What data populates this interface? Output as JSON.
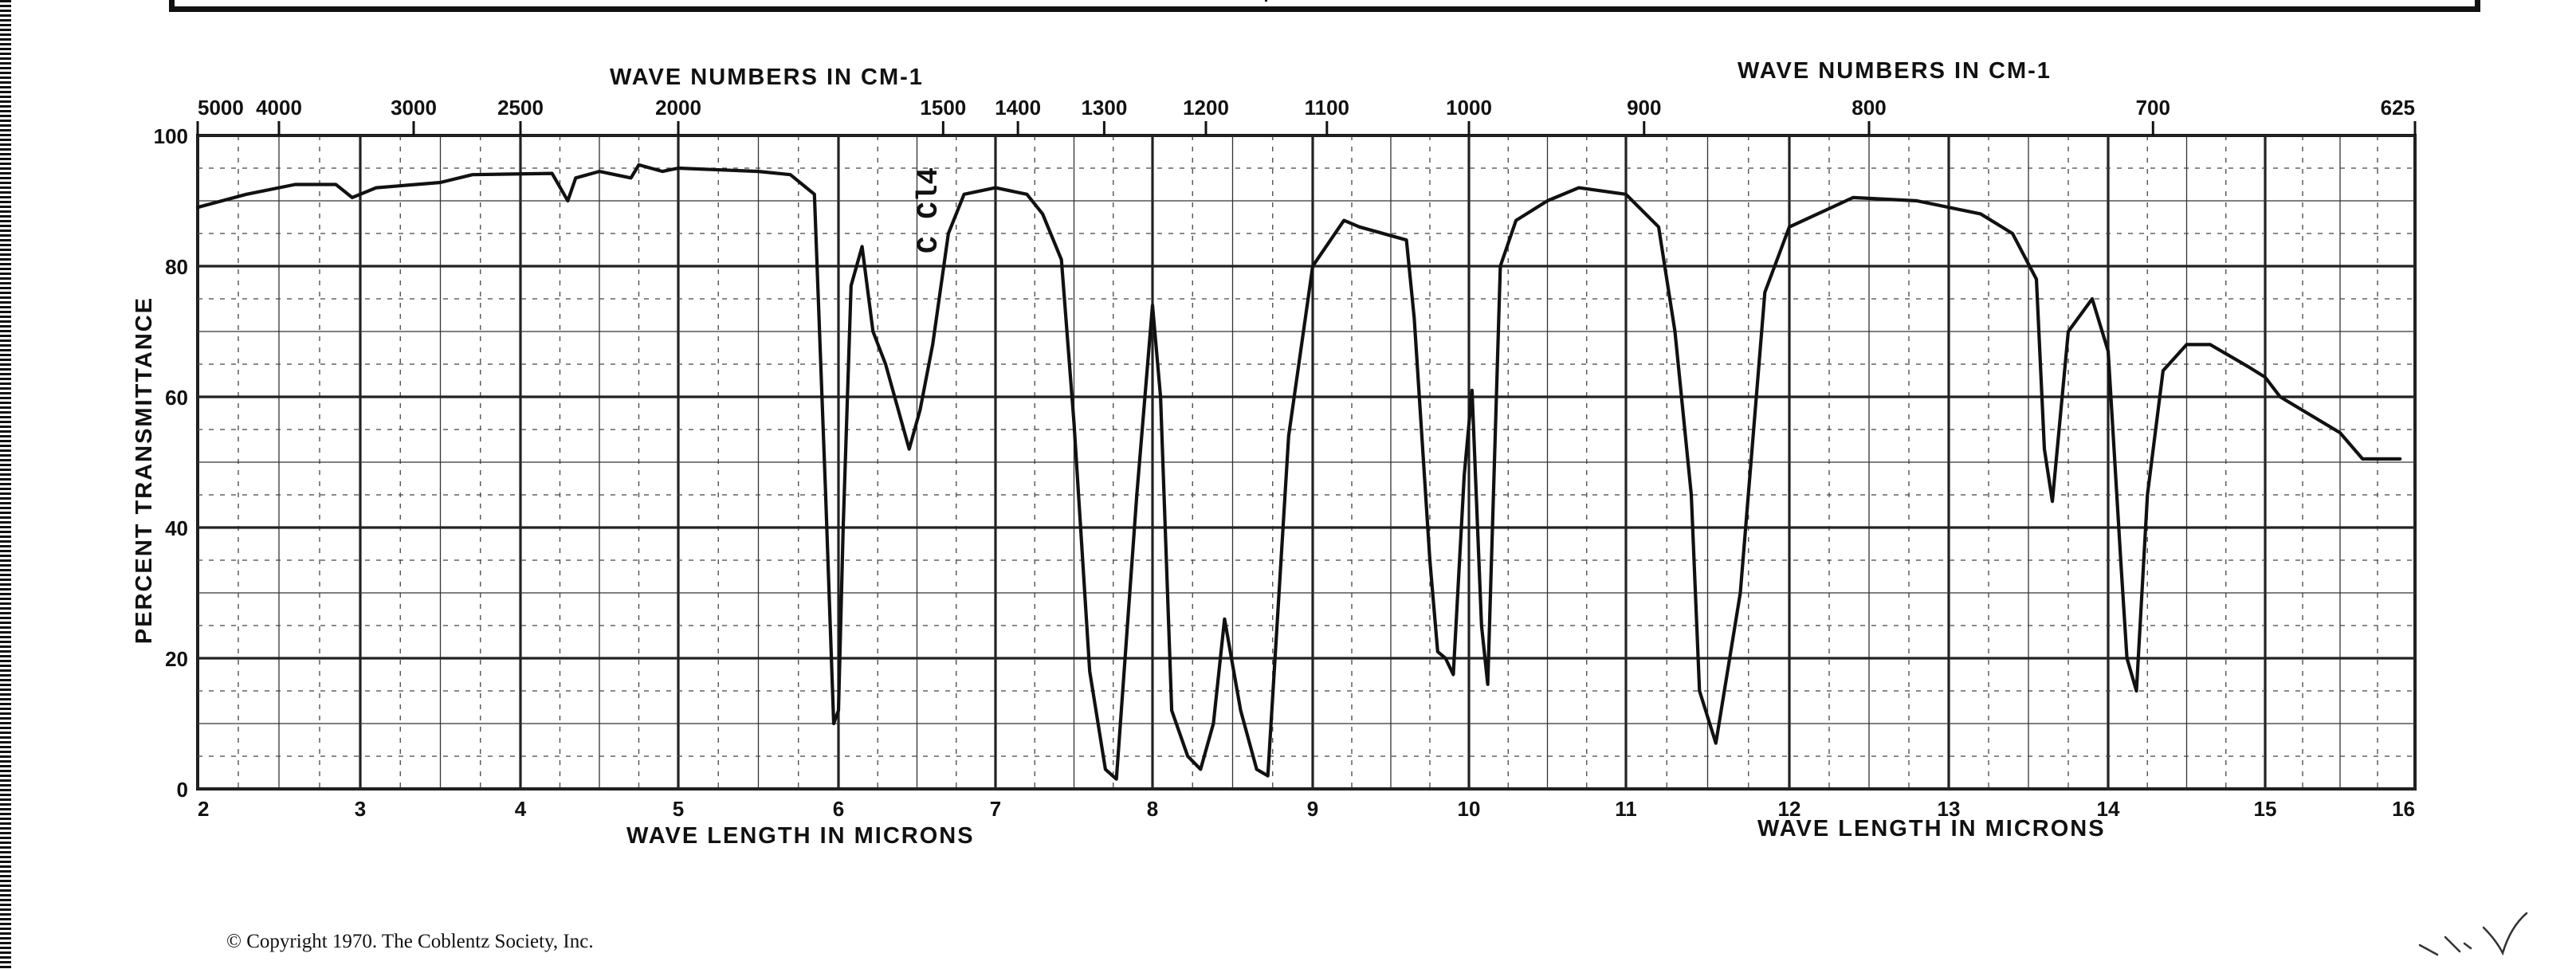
{
  "document": {
    "copyright": "© Copyright 1970. The Coblentz Society, Inc."
  },
  "chart_data": {
    "type": "line",
    "title": "",
    "xlabel": "WAVE LENGTH IN MICRONS",
    "xlabel_repeat": "WAVE LENGTH IN MICRONS",
    "ylabel": "PERCENT TRANSMITTANCE",
    "top_axis_label": "WAVE NUMBERS IN CM-1",
    "top_axis_label_repeat": "WAVE NUMBERS IN CM-1",
    "xlim": [
      2,
      16
    ],
    "ylim": [
      0,
      100
    ],
    "grid": true,
    "x_tick_labels": [
      "2",
      "3",
      "4",
      "5",
      "6",
      "7",
      "8",
      "9",
      "10",
      "11",
      "12",
      "13",
      "14",
      "15",
      "16"
    ],
    "y_tick_labels": [
      "0",
      "20",
      "40",
      "60",
      "80",
      "100"
    ],
    "top_tick_labels": [
      "5000",
      "4000",
      "3000",
      "2500",
      "2000",
      "1500",
      "1400",
      "1300",
      "1200",
      "1100",
      "1000",
      "900",
      "800",
      "700",
      "625"
    ],
    "annotations": [
      {
        "text": "C Cl4",
        "x": 6.4,
        "y": 87
      }
    ],
    "series": [
      {
        "x": [
          2.0,
          2.3,
          2.6,
          2.85,
          2.95,
          3.1,
          3.5,
          3.7,
          4.2,
          4.3,
          4.35,
          4.5,
          4.7,
          4.75,
          4.9,
          5.0,
          5.5,
          5.7,
          5.85,
          5.92,
          5.97,
          6.0,
          6.03,
          6.08,
          6.15,
          6.22,
          6.3,
          6.45,
          6.52,
          6.6,
          6.7,
          6.8,
          7.0,
          7.2,
          7.3,
          7.42,
          7.5,
          7.6,
          7.7,
          7.77,
          7.9,
          8.0,
          8.05,
          8.12,
          8.22,
          8.3,
          8.38,
          8.45,
          8.55,
          8.65,
          8.72,
          8.85,
          9.0,
          9.2,
          9.3,
          9.6,
          9.65,
          9.75,
          9.8,
          9.85,
          9.9,
          9.97,
          10.02,
          10.08,
          10.12,
          10.2,
          10.3,
          10.5,
          10.7,
          11.0,
          11.2,
          11.3,
          11.4,
          11.45,
          11.55,
          11.7,
          11.85,
          12.0,
          12.4,
          12.8,
          13.2,
          13.4,
          13.55,
          13.6,
          13.65,
          13.75,
          13.9,
          14.0,
          14.08,
          14.12,
          14.18,
          14.25,
          14.35,
          14.5,
          14.65,
          14.9,
          15.0,
          15.1,
          15.5,
          15.65,
          15.9
        ],
        "y": [
          89,
          91,
          92.5,
          92.5,
          90.5,
          92,
          92.8,
          94,
          94.2,
          90,
          93.5,
          94.5,
          93.5,
          95.5,
          94.5,
          95,
          94.5,
          94,
          91,
          45,
          10,
          12,
          40,
          77,
          83,
          70,
          65,
          52,
          58,
          68,
          85,
          91,
          92,
          91,
          88,
          81,
          56,
          18,
          3,
          1.5,
          45,
          74,
          60,
          12,
          5,
          3,
          10,
          26,
          12,
          3,
          2,
          54,
          80,
          87,
          86,
          84,
          72,
          35,
          21,
          20,
          17.5,
          48,
          61,
          25,
          16,
          80,
          87,
          90,
          92,
          91,
          86,
          70,
          45,
          15,
          7,
          30,
          76,
          86,
          90.5,
          90,
          88,
          85,
          78,
          52,
          44,
          70,
          75,
          67,
          35,
          20,
          15,
          45,
          64,
          68,
          68,
          64.5,
          63,
          60,
          54.5,
          50.5,
          50.5
        ]
      }
    ]
  }
}
